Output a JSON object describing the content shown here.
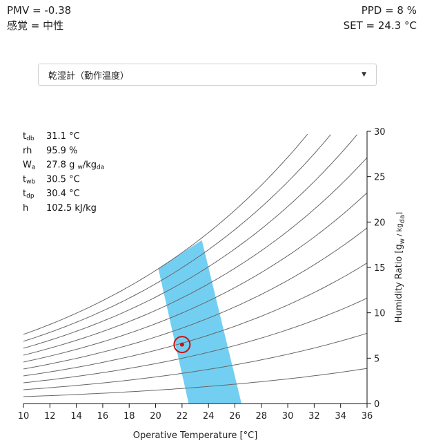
{
  "results": {
    "pmv": "PMV = -0.38",
    "sensation": "感覚 = 中性",
    "ppd": "PPD = 8 %",
    "set": "SET = 24.3 °C"
  },
  "chart_selector": {
    "selected": "乾湿計（動作温度）",
    "caret_icon": "caret-down-icon"
  },
  "readout": [
    {
      "label": "tdb",
      "sub": "db",
      "base": "t",
      "value": "31.1 °C"
    },
    {
      "label": "rh",
      "sub": "",
      "base": "rh",
      "value": "95.9 %"
    },
    {
      "label": "Wa",
      "sub": "a",
      "base": "W",
      "value": "27.8 g w/kgda",
      "value_main": "27.8 g",
      "value_sub1": "w",
      "value_mid": "/kg",
      "value_sub2": "da"
    },
    {
      "label": "twb",
      "sub": "wb",
      "base": "t",
      "value": "30.5 °C"
    },
    {
      "label": "tdp",
      "sub": "dp",
      "base": "t",
      "value": "30.4 °C"
    },
    {
      "label": "h",
      "sub": "",
      "base": "h",
      "value": "102.5 kJ/kg"
    }
  ],
  "chart_data": {
    "type": "line",
    "xlabel": "Operative Temperature [°C]",
    "ylabel": "Humidity Ratio [g w / kg da]",
    "xlim": [
      10,
      36
    ],
    "ylim": [
      0,
      30
    ],
    "x_ticks": [
      10,
      12,
      14,
      16,
      18,
      20,
      22,
      24,
      26,
      28,
      30,
      32,
      34,
      36
    ],
    "y_ticks": [
      0,
      5,
      10,
      15,
      20,
      25,
      30
    ],
    "rh_curves_percent": [
      10,
      20,
      30,
      40,
      50,
      60,
      70,
      80,
      90,
      100
    ],
    "comfort_zone_polygon": [
      [
        22.5,
        0
      ],
      [
        26.5,
        0
      ],
      [
        23.5,
        18.0
      ],
      [
        20.2,
        14.9
      ]
    ],
    "comfort_zone_color": "#73cff2",
    "current_point": {
      "x": 22.0,
      "y": 6.5
    },
    "point_color": "#cc1111",
    "curve_color": "#666666"
  }
}
